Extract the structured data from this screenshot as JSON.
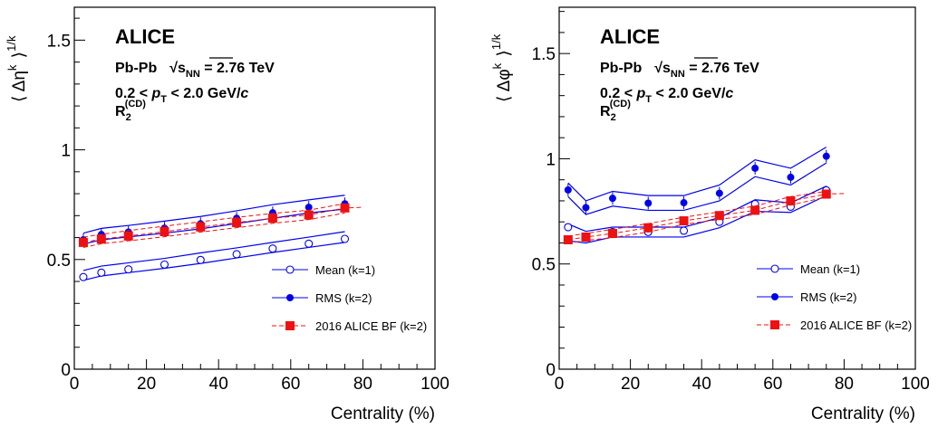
{
  "chart_data": [
    {
      "type": "scatter",
      "panel": "left",
      "ylabel": "⟨ Δη^k ⟩^{1/k}",
      "ylabel_main": "⟨ Δη",
      "ylabel_sup_k": "k",
      "ylabel_close": "⟩",
      "ylabel_sup_1k": "1/k",
      "xlabel": "Centrality (%)",
      "xlim": [
        0,
        100
      ],
      "ylim": [
        0,
        1.65
      ],
      "xticks": [
        0,
        20,
        40,
        60,
        80,
        100
      ],
      "yticks": [
        0,
        0.5,
        1,
        1.5
      ],
      "xtick_labels": [
        "0",
        "20",
        "40",
        "60",
        "80",
        "100"
      ],
      "ytick_labels": [
        "0",
        "0.5",
        "1",
        "1.5"
      ],
      "annotations": {
        "experiment": "ALICE",
        "system": "Pb-Pb",
        "energy_prefix": "√",
        "energy_s": "s",
        "energy_sub": "NN",
        "energy_value": " = 2.76 TeV",
        "pt_lower": "0.2 < ",
        "pt_p": "p",
        "pt_sub": "T",
        "pt_upper": " < 2.0 GeV/",
        "pt_c": "c",
        "r2_R": "R",
        "r2_sub": "2",
        "r2_sup": "(CD)"
      },
      "series": [
        {
          "name": "Mean (k=1)",
          "marker": "open-circle",
          "color": "#0000ee",
          "x": [
            2.5,
            7.5,
            15,
            25,
            35,
            45,
            55,
            65,
            75
          ],
          "y": [
            0.42,
            0.44,
            0.455,
            0.477,
            0.498,
            0.524,
            0.55,
            0.572,
            0.594
          ],
          "band_upper": [
            0.45,
            0.47,
            0.485,
            0.505,
            0.53,
            0.553,
            0.578,
            0.602,
            0.627
          ],
          "band_lower": [
            0.405,
            0.425,
            0.44,
            0.46,
            0.482,
            0.507,
            0.532,
            0.555,
            0.578
          ]
        },
        {
          "name": "RMS (k=2)",
          "marker": "filled-circle",
          "color": "#0000ee",
          "x": [
            2.5,
            7.5,
            15,
            25,
            35,
            45,
            55,
            65,
            75
          ],
          "y": [
            0.59,
            0.614,
            0.625,
            0.643,
            0.663,
            0.688,
            0.713,
            0.738,
            0.754
          ],
          "band_upper": [
            0.62,
            0.642,
            0.655,
            0.675,
            0.696,
            0.722,
            0.75,
            0.772,
            0.793
          ],
          "band_lower": [
            0.57,
            0.59,
            0.603,
            0.62,
            0.64,
            0.664,
            0.688,
            0.712,
            0.73
          ]
        },
        {
          "name": "2016 ALICE BF (k=2)",
          "marker": "filled-square",
          "color": "#ee1111",
          "x": [
            2.5,
            7.5,
            15,
            25,
            35,
            45,
            55,
            65,
            75
          ],
          "y": [
            0.578,
            0.593,
            0.607,
            0.627,
            0.648,
            0.668,
            0.688,
            0.703,
            0.735
          ],
          "band_upper": [
            0.602,
            0.615,
            0.632,
            0.652,
            0.672,
            0.692,
            0.71,
            0.725,
            0.755
          ],
          "band_lower": [
            0.555,
            0.572,
            0.585,
            0.604,
            0.625,
            0.645,
            0.665,
            0.682,
            0.712
          ]
        }
      ],
      "legend": [
        "Mean (k=1)",
        "RMS (k=2)",
        "2016 ALICE BF (k=2)"
      ],
      "legend_position": "bottom-right"
    },
    {
      "type": "scatter",
      "panel": "right",
      "ylabel": "⟨ Δφ^k ⟩^{1/k}",
      "ylabel_main": "⟨ Δφ",
      "ylabel_sup_k": "k",
      "ylabel_close": "⟩",
      "ylabel_sup_1k": "1/k",
      "xlabel": "Centrality (%)",
      "xlim": [
        0,
        100
      ],
      "ylim": [
        0,
        1.72
      ],
      "xticks": [
        0,
        20,
        40,
        60,
        80,
        100
      ],
      "yticks": [
        0,
        0.5,
        1,
        1.5
      ],
      "xtick_labels": [
        "0",
        "20",
        "40",
        "60",
        "80",
        "100"
      ],
      "ytick_labels": [
        "0",
        "0.5",
        "1",
        "1.5"
      ],
      "annotations": {
        "experiment": "ALICE",
        "system": "Pb-Pb",
        "energy_prefix": "√",
        "energy_s": "s",
        "energy_sub": "NN",
        "energy_value": " = 2.76 TeV",
        "pt_lower": "0.2 < ",
        "pt_p": "p",
        "pt_sub": "T",
        "pt_upper": " < 2.0 GeV/",
        "pt_c": "c",
        "r2_R": "R",
        "r2_sub": "2",
        "r2_sup": "(CD)"
      },
      "series": [
        {
          "name": "Mean (k=1)",
          "marker": "open-circle",
          "color": "#0000ee",
          "x": [
            2.5,
            7.5,
            15,
            25,
            35,
            45,
            55,
            65,
            75
          ],
          "y": [
            0.675,
            0.625,
            0.652,
            0.652,
            0.658,
            0.7,
            0.785,
            0.772,
            0.85
          ],
          "band_upper": [
            0.69,
            0.655,
            0.675,
            0.675,
            0.675,
            0.72,
            0.805,
            0.79,
            0.87
          ],
          "band_lower": [
            0.61,
            0.6,
            0.628,
            0.628,
            0.628,
            0.672,
            0.75,
            0.745,
            0.825
          ]
        },
        {
          "name": "RMS (k=2)",
          "marker": "filled-circle",
          "color": "#0000ee",
          "x": [
            2.5,
            7.5,
            15,
            25,
            35,
            45,
            55,
            65,
            75
          ],
          "y": [
            0.852,
            0.768,
            0.812,
            0.789,
            0.791,
            0.836,
            0.955,
            0.912,
            1.012
          ],
          "band_upper": [
            0.885,
            0.8,
            0.845,
            0.825,
            0.825,
            0.875,
            0.995,
            0.955,
            1.055
          ],
          "band_lower": [
            0.82,
            0.735,
            0.775,
            0.755,
            0.755,
            0.8,
            0.915,
            0.875,
            0.98
          ]
        },
        {
          "name": "2016 ALICE BF (k=2)",
          "marker": "filled-square",
          "color": "#ee1111",
          "x": [
            2.5,
            7.5,
            15,
            25,
            35,
            45,
            55,
            65,
            75
          ],
          "y": [
            0.615,
            0.628,
            0.645,
            0.672,
            0.705,
            0.73,
            0.755,
            0.8,
            0.832
          ],
          "band_upper": [
            0.632,
            0.645,
            0.665,
            0.692,
            0.722,
            0.748,
            0.775,
            0.82,
            0.845
          ],
          "band_lower": [
            0.598,
            0.612,
            0.625,
            0.652,
            0.688,
            0.712,
            0.735,
            0.78,
            0.818
          ]
        }
      ],
      "legend": [
        "Mean (k=1)",
        "RMS (k=2)",
        "2016 ALICE BF (k=2)"
      ],
      "legend_position": "bottom-right"
    }
  ]
}
